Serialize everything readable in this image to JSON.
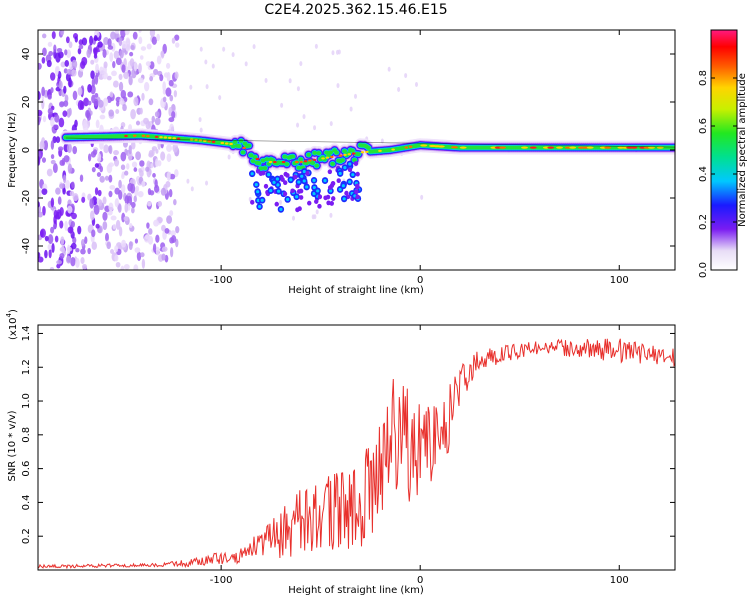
{
  "title": "C2E4.2025.362.15.46.E15",
  "chart_data": [
    {
      "type": "heatmap",
      "name": "spectrogram",
      "xlabel": "Height of straight line (km)",
      "ylabel": "Frequency (Hz)",
      "xlim": [
        -192,
        128
      ],
      "ylim": [
        -50,
        50
      ],
      "xticks": [
        {
          "value": -100,
          "label": "-100"
        },
        {
          "value": 0,
          "label": "0"
        },
        {
          "value": 100,
          "label": "100"
        }
      ],
      "yticks": [
        {
          "value": -40,
          "label": "-40"
        },
        {
          "value": -20,
          "label": "-20"
        },
        {
          "value": 0,
          "label": "0"
        },
        {
          "value": 20,
          "label": "20"
        },
        {
          "value": 40,
          "label": "40"
        }
      ],
      "colorbar": {
        "label": "Normalized spectral amplitude",
        "range": [
          0,
          1
        ],
        "ticks": [
          {
            "value": 0.0,
            "label": "0.0"
          },
          {
            "value": 0.2,
            "label": "0.2"
          },
          {
            "value": 0.4,
            "label": "0.4"
          },
          {
            "value": 0.6,
            "label": "0.6"
          },
          {
            "value": 0.8,
            "label": "0.8"
          }
        ]
      },
      "ridge": [
        {
          "x": -190,
          "f": 5
        },
        {
          "x": -140,
          "f": 6
        },
        {
          "x": -110,
          "f": 4
        },
        {
          "x": -90,
          "f": 2
        },
        {
          "x": -80,
          "f": -5
        },
        {
          "x": -60,
          "f": -5
        },
        {
          "x": -45,
          "f": -3
        },
        {
          "x": -30,
          "f": -1
        },
        {
          "x": -15,
          "f": 0
        },
        {
          "x": 0,
          "f": 2
        },
        {
          "x": 20,
          "f": 1
        },
        {
          "x": 60,
          "f": 1
        },
        {
          "x": 100,
          "f": 1
        },
        {
          "x": 128,
          "f": 1
        }
      ],
      "noise_region_x": [
        -192,
        -122
      ]
    },
    {
      "type": "line",
      "name": "snr",
      "xlabel": "Height of straight line (km)",
      "ylabel": "SNR (10 * v/v)",
      "multiplier_label": "(x10",
      "multiplier_exp": "4",
      "xlim": [
        -192,
        128
      ],
      "ylim": [
        0,
        1.45
      ],
      "xticks": [
        {
          "value": -100,
          "label": "-100"
        },
        {
          "value": 0,
          "label": "0"
        },
        {
          "value": 100,
          "label": "100"
        }
      ],
      "yticks": [
        {
          "value": 0.2,
          "label": "0.2"
        },
        {
          "value": 0.4,
          "label": "0.4"
        },
        {
          "value": 0.6,
          "label": "0.6"
        },
        {
          "value": 0.8,
          "label": "0.8"
        },
        {
          "value": 1.0,
          "label": "1.0"
        },
        {
          "value": 1.2,
          "label": "1.2"
        },
        {
          "value": 1.4,
          "label": "1.4"
        }
      ],
      "color": "#e8302c",
      "envelope": [
        {
          "x": -192,
          "mean": 0.02,
          "amp": 0.01
        },
        {
          "x": -130,
          "mean": 0.03,
          "amp": 0.01
        },
        {
          "x": -110,
          "mean": 0.05,
          "amp": 0.03
        },
        {
          "x": -90,
          "mean": 0.09,
          "amp": 0.05
        },
        {
          "x": -75,
          "mean": 0.18,
          "amp": 0.12
        },
        {
          "x": -60,
          "mean": 0.28,
          "amp": 0.2
        },
        {
          "x": -40,
          "mean": 0.35,
          "amp": 0.25
        },
        {
          "x": -25,
          "mean": 0.45,
          "amp": 0.3
        },
        {
          "x": -20,
          "mean": 0.6,
          "amp": 0.3
        },
        {
          "x": -15,
          "mean": 0.85,
          "amp": 0.35
        },
        {
          "x": -5,
          "mean": 0.75,
          "amp": 0.35
        },
        {
          "x": 5,
          "mean": 0.75,
          "amp": 0.25
        },
        {
          "x": 15,
          "mean": 0.9,
          "amp": 0.2
        },
        {
          "x": 20,
          "mean": 1.1,
          "amp": 0.15
        },
        {
          "x": 30,
          "mean": 1.25,
          "amp": 0.06
        },
        {
          "x": 60,
          "mean": 1.32,
          "amp": 0.04
        },
        {
          "x": 100,
          "mean": 1.3,
          "amp": 0.07
        },
        {
          "x": 128,
          "mean": 1.26,
          "amp": 0.05
        }
      ]
    }
  ]
}
